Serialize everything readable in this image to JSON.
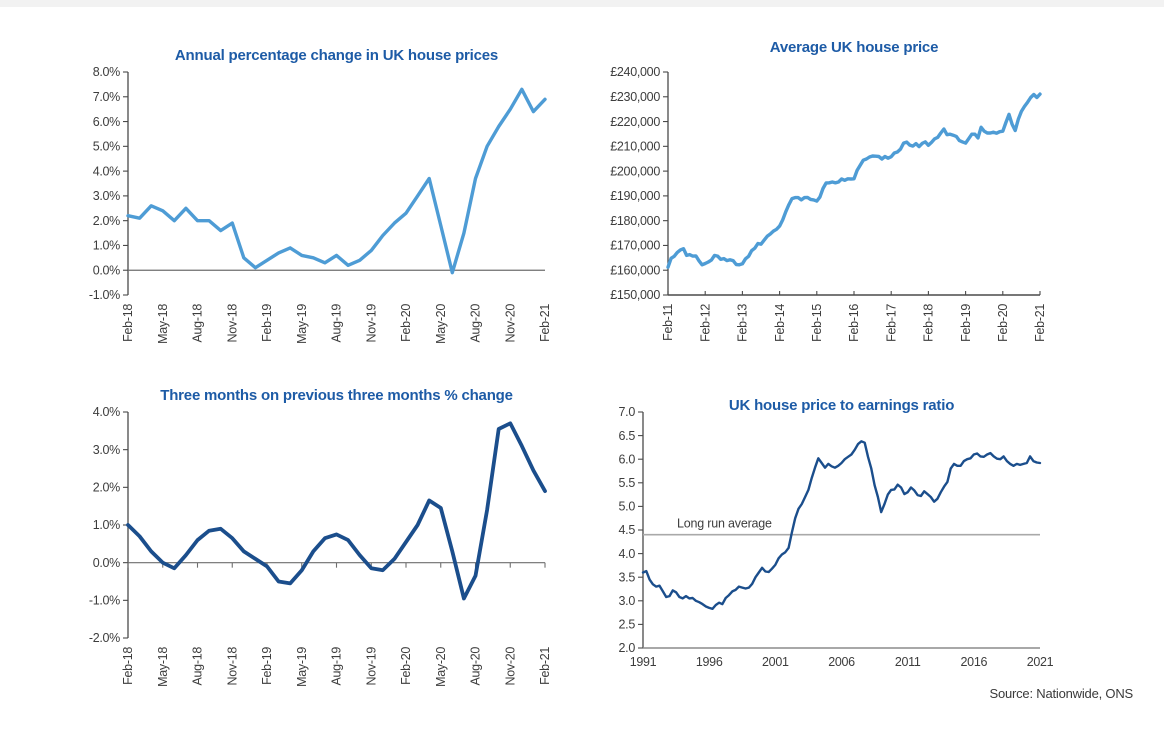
{
  "page": {
    "source_note": "Source: Nationwide, ONS",
    "title_color": "#1d5ba6",
    "background": "#ffffff",
    "top_strip_color": "#f2f2f2"
  },
  "chart_data": [
    {
      "id": "annual-pct-change",
      "type": "line",
      "title": "Annual percentage change in UK house prices",
      "x_tick_labels": [
        "Feb-18",
        "May-18",
        "Aug-18",
        "Nov-18",
        "Feb-19",
        "May-19",
        "Aug-19",
        "Nov-19",
        "Feb-20",
        "May-20",
        "Aug-20",
        "Nov-20",
        "Feb-21"
      ],
      "points_per_tick": 3,
      "x_labels_rotated": true,
      "values": [
        2.2,
        2.1,
        2.6,
        2.4,
        2.0,
        2.5,
        2.0,
        2.0,
        1.6,
        1.9,
        0.5,
        0.1,
        0.4,
        0.7,
        0.9,
        0.6,
        0.5,
        0.3,
        0.6,
        0.2,
        0.4,
        0.8,
        1.4,
        1.9,
        2.3,
        3.0,
        3.7,
        1.8,
        -0.1,
        1.5,
        3.7,
        5.0,
        5.8,
        6.5,
        7.3,
        6.4,
        6.9
      ],
      "ylim": [
        -1.0,
        8.0
      ],
      "y_step": 1.0,
      "y_format": "percent1",
      "line_color": "#4e9cd5",
      "line_width": 3.4,
      "zero_line": true,
      "x_tick_style": "none",
      "grid": false,
      "legend": false
    },
    {
      "id": "average-price",
      "type": "line",
      "title": "Average UK house price",
      "x_tick_labels": [
        "Feb-11",
        "Feb-12",
        "Feb-13",
        "Feb-14",
        "Feb-15",
        "Feb-16",
        "Feb-17",
        "Feb-18",
        "Feb-19",
        "Feb-20",
        "Feb-21"
      ],
      "points_per_tick": 12,
      "x_labels_rotated": true,
      "values": [
        161200,
        164800,
        165600,
        167200,
        168200,
        168700,
        166000,
        166300,
        165700,
        165800,
        163800,
        162200,
        162700,
        163300,
        164100,
        166000,
        165700,
        164400,
        164700,
        163900,
        164200,
        163900,
        162300,
        162200,
        162600,
        164600,
        165600,
        167900,
        168900,
        170800,
        170500,
        172100,
        173700,
        174600,
        175800,
        176500,
        177800,
        180300,
        183600,
        186500,
        188900,
        189300,
        189300,
        188400,
        189300,
        189400,
        188600,
        188400,
        187900,
        189500,
        193000,
        195200,
        195300,
        195600,
        195300,
        195600,
        196800,
        196300,
        196900,
        196800,
        196900,
        200300,
        202400,
        204400,
        204900,
        205700,
        206100,
        206000,
        205900,
        204900,
        205900,
        205200,
        205800,
        207300,
        207700,
        208900,
        211300,
        211700,
        210500,
        210100,
        211100,
        209900,
        211200,
        211800,
        210400,
        211600,
        213000,
        213600,
        215400,
        217000,
        214700,
        214900,
        214500,
        214000,
        212300,
        211800,
        211300,
        213100,
        214900,
        214900,
        213400,
        217700,
        216100,
        215400,
        215400,
        215700,
        215300,
        215900,
        216100,
        219600,
        222900,
        218900,
        216400,
        220900,
        224100,
        226100,
        227800,
        229700,
        230900,
        229700,
        231100
      ],
      "ylim": [
        150000,
        240000
      ],
      "y_step": 10000,
      "y_format": "gbp",
      "line_color": "#4e9cd5",
      "line_width": 3.4,
      "bottom_axis": true,
      "x_tick_style": "inside",
      "grid": false,
      "legend": false
    },
    {
      "id": "three-month-on-three-month",
      "type": "line",
      "title": "Three months on previous three months % change",
      "x_tick_labels": [
        "Feb-18",
        "May-18",
        "Aug-18",
        "Nov-18",
        "Feb-19",
        "May-19",
        "Aug-19",
        "Nov-19",
        "Feb-20",
        "May-20",
        "Aug-20",
        "Nov-20",
        "Feb-21"
      ],
      "points_per_tick": 3,
      "x_labels_rotated": true,
      "values": [
        1.0,
        0.7,
        0.3,
        0.0,
        -0.15,
        0.2,
        0.6,
        0.85,
        0.9,
        0.65,
        0.3,
        0.1,
        -0.1,
        -0.5,
        -0.55,
        -0.2,
        0.3,
        0.65,
        0.75,
        0.6,
        0.2,
        -0.15,
        -0.2,
        0.1,
        0.55,
        1.0,
        1.65,
        1.45,
        0.3,
        -0.95,
        -0.35,
        1.4,
        3.55,
        3.7,
        3.1,
        2.45,
        1.9
      ],
      "ylim": [
        -2.0,
        4.0
      ],
      "y_step": 1.0,
      "y_format": "percent1",
      "line_color": "#1b4e8c",
      "line_width": 3.8,
      "zero_line": true,
      "x_tick_style": "zero-below",
      "grid": false,
      "legend": false
    },
    {
      "id": "price-to-earnings-ratio",
      "type": "line",
      "title": "UK house price to earnings ratio",
      "x_tick_labels": [
        "1991",
        "1996",
        "2001",
        "2006",
        "2011",
        "2016",
        "2021"
      ],
      "points_per_tick": 20,
      "x_labels_rotated": false,
      "values": [
        3.6,
        3.63,
        3.45,
        3.35,
        3.3,
        3.32,
        3.2,
        3.08,
        3.1,
        3.22,
        3.18,
        3.08,
        3.05,
        3.1,
        3.05,
        3.06,
        3.0,
        2.97,
        2.93,
        2.88,
        2.85,
        2.83,
        2.91,
        2.96,
        2.93,
        3.06,
        3.12,
        3.2,
        3.23,
        3.3,
        3.28,
        3.26,
        3.28,
        3.36,
        3.5,
        3.6,
        3.7,
        3.62,
        3.61,
        3.68,
        3.76,
        3.9,
        3.98,
        4.03,
        4.12,
        4.45,
        4.75,
        4.95,
        5.05,
        5.2,
        5.35,
        5.6,
        5.82,
        6.02,
        5.92,
        5.82,
        5.9,
        5.85,
        5.82,
        5.86,
        5.92,
        6.0,
        6.05,
        6.1,
        6.2,
        6.32,
        6.38,
        6.35,
        6.05,
        5.8,
        5.45,
        5.2,
        4.88,
        5.05,
        5.25,
        5.35,
        5.36,
        5.46,
        5.4,
        5.26,
        5.3,
        5.4,
        5.34,
        5.24,
        5.22,
        5.32,
        5.26,
        5.2,
        5.1,
        5.16,
        5.3,
        5.42,
        5.52,
        5.8,
        5.9,
        5.86,
        5.86,
        5.96,
        6.0,
        6.02,
        6.1,
        6.12,
        6.06,
        6.05,
        6.1,
        6.13,
        6.06,
        6.01,
        6.0,
        6.06,
        5.96,
        5.9,
        5.86,
        5.9,
        5.88,
        5.9,
        5.92,
        6.06,
        5.96,
        5.93,
        5.92
      ],
      "ylim": [
        2.0,
        7.0
      ],
      "y_step": 0.5,
      "y_format": "num1",
      "line_color": "#1b4e8c",
      "line_width": 2.4,
      "bottom_axis": true,
      "bottom_axis_color": "#8c8c8c",
      "x_tick_style": "none",
      "ref_line": {
        "value": 4.4,
        "label": "Long run average",
        "color": "#a9a9a9"
      },
      "grid": false,
      "legend": false
    }
  ]
}
